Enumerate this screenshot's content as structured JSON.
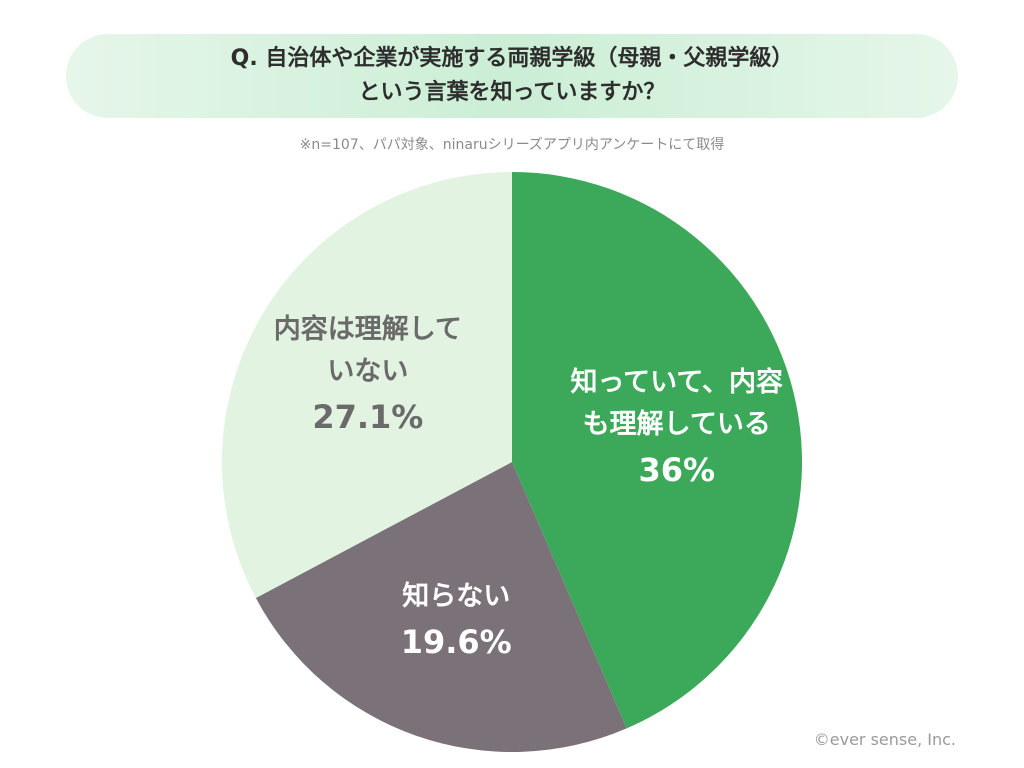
{
  "chart_data": {
    "type": "pie",
    "title": "Q. 自治体や企業が実施する両親学級（母親・父親学級）\nという言葉を知っていますか？",
    "subtitle": "※n=107、パパ対象、ninaruシリーズアプリ内アンケートにて取得",
    "categories": [
      "知っていて、内容\nも理解している",
      "知らない",
      "内容は理解して\nいない"
    ],
    "values": [
      36,
      19.6,
      27.1
    ],
    "value_labels": [
      "36%",
      "19.6%",
      "27.1%"
    ],
    "colors": [
      "#3ca85a",
      "#7b7279",
      "#e2f3e2"
    ],
    "label_colors": [
      "#ffffff",
      "#ffffff",
      "#6a6a6a"
    ],
    "credit": "©ever sense, Inc."
  }
}
